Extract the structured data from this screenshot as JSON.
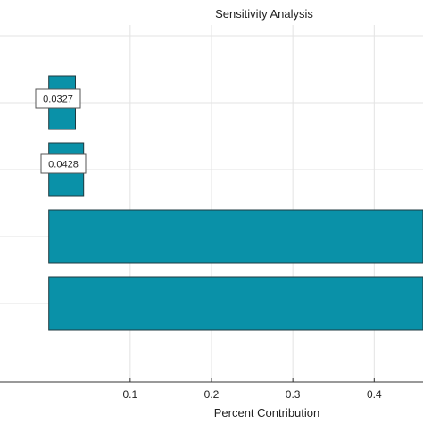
{
  "chart_data": {
    "type": "bar",
    "orientation": "horizontal",
    "title": "Sensitivity Analysis",
    "xlabel": "Percent Contribution",
    "ylabel": "",
    "xlim": [
      -0.06,
      0.46
    ],
    "xticks": [
      0.1,
      0.2,
      0.3,
      0.4
    ],
    "xtick_labels": [
      "0.1",
      "0.2",
      "0.3",
      "0.4"
    ],
    "grid": true,
    "bar_color": "#0a91a8",
    "bar_edge_color": "#1e3a40",
    "bars": [
      {
        "value": 0.0327,
        "annotation": "0.0327"
      },
      {
        "value": 0.0428,
        "annotation": "0.0428"
      },
      {
        "value": 0.46,
        "annotation": ""
      },
      {
        "value": 0.46,
        "annotation": ""
      }
    ]
  }
}
